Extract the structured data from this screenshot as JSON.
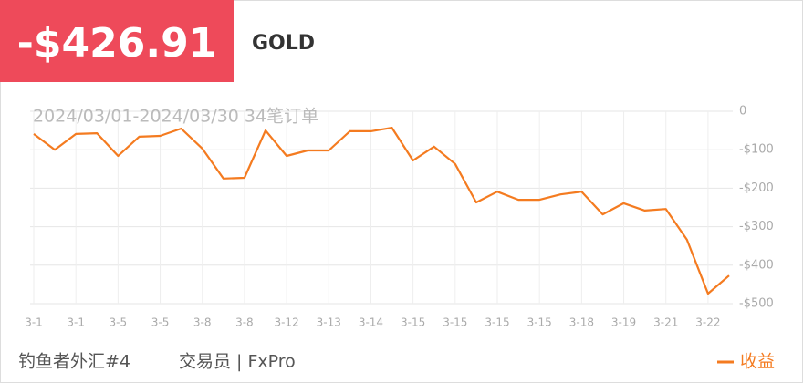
{
  "header": {
    "value": "-$426.91",
    "symbol": "GOLD"
  },
  "chart_data": {
    "type": "line",
    "subtitle": "2024/03/01-2024/03/30 34笔订单",
    "categories": [
      "3-1",
      null,
      "3-1",
      null,
      "3-5",
      null,
      "3-5",
      null,
      "3-8",
      null,
      "3-8",
      null,
      "3-12",
      null,
      "3-13",
      null,
      "3-14",
      null,
      "3-15",
      null,
      "3-15",
      null,
      "3-15",
      null,
      "3-15",
      null,
      "3-18",
      null,
      "3-19",
      null,
      "3-21",
      null,
      "3-22",
      null
    ],
    "series": [
      {
        "name": "收益",
        "color": "#f47b20",
        "values": [
          -59,
          -100,
          -59,
          -57,
          -116,
          -66,
          -64,
          -45,
          -97,
          -175,
          -173,
          -50,
          -116,
          -102,
          -102,
          -52,
          -52,
          -43,
          -128,
          -92,
          -137,
          -237,
          -209,
          -230,
          -230,
          -216,
          -209,
          -268,
          -239,
          -258,
          -254,
          -334,
          -474,
          -426.91
        ]
      }
    ],
    "ylim": [
      -500,
      0
    ],
    "yticks": [
      0,
      {
        "value": -100,
        "label": "-$100"
      },
      {
        "value": -200,
        "label": "-$200"
      },
      {
        "value": -300,
        "label": "-$300"
      },
      {
        "value": -400,
        "label": "-$400"
      },
      {
        "value": -500,
        "label": "-$500"
      }
    ],
    "grid": true,
    "legend": "bottom-right"
  },
  "footer": {
    "account": "钓鱼者外汇#4",
    "trader": "交易员 | FxPro"
  }
}
